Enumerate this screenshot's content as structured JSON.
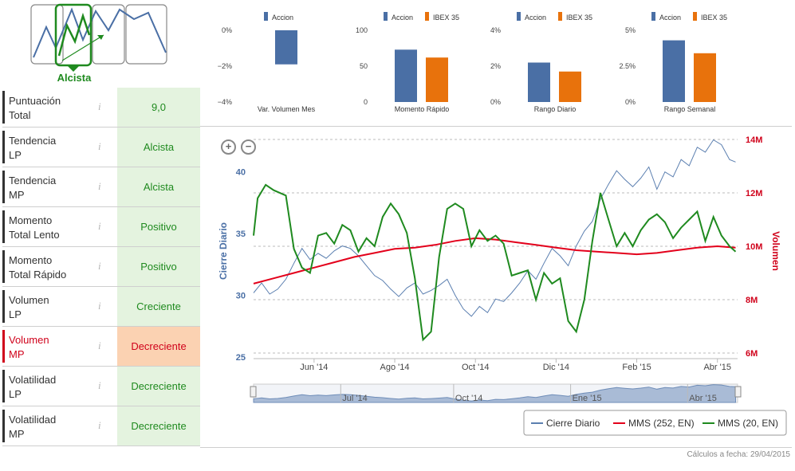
{
  "trend_label": "Alcista",
  "metrics": [
    {
      "name": "Puntuación\nTotal",
      "info": "i",
      "value": "9,0",
      "style": "bold"
    },
    {
      "name": "Tendencia\nLP",
      "info": "i",
      "value": "Alcista",
      "style": "normal"
    },
    {
      "name": "Tendencia\nMP",
      "info": "i",
      "value": "Alcista",
      "style": "normal"
    },
    {
      "name": "Momento\nTotal Lento",
      "info": "i",
      "value": "Positivo",
      "style": "normal"
    },
    {
      "name": "Momento\nTotal Rápido",
      "info": "i",
      "value": "Positivo",
      "style": "normal"
    },
    {
      "name": "Volumen\nLP",
      "info": "i",
      "value": "Creciente",
      "style": "normal"
    },
    {
      "name": "Volumen\nMP",
      "info": "i",
      "value": "Decreciente",
      "style": "alert"
    },
    {
      "name": "Volatilidad\nLP",
      "info": "i",
      "value": "Decreciente",
      "style": "normal"
    },
    {
      "name": "Volatilidad\nMP",
      "info": "i",
      "value": "Decreciente",
      "style": "normal"
    }
  ],
  "footer": "Cálculos a fecha: 29/04/2015",
  "colors": {
    "accion": "#4a6fa5",
    "ibex": "#e8720c",
    "green": "#1f8a1f",
    "red": "#e3001b",
    "blue_line": "#5b7fb0"
  },
  "chart_data": [
    {
      "type": "bar",
      "xlabel": "Var. Volumen Mes",
      "series": [
        {
          "name": "Accion",
          "values": [
            -1.9
          ]
        }
      ],
      "ylim": [
        -4,
        0
      ],
      "ticks": [
        "0%",
        "−2%",
        "−4%"
      ],
      "tick_values": [
        0,
        -2,
        -4
      ]
    },
    {
      "type": "bar",
      "xlabel": "Momento Rápido",
      "series": [
        {
          "name": "Accion",
          "values": [
            73
          ]
        },
        {
          "name": "IBEX 35",
          "values": [
            62
          ]
        }
      ],
      "ylim": [
        0,
        100
      ],
      "ticks": [
        "100",
        "50",
        "0"
      ],
      "tick_values": [
        100,
        50,
        0
      ]
    },
    {
      "type": "bar",
      "xlabel": "Rango Diario",
      "series": [
        {
          "name": "Accion",
          "values": [
            2.2
          ]
        },
        {
          "name": "IBEX 35",
          "values": [
            1.7
          ]
        }
      ],
      "ylim": [
        0,
        4
      ],
      "ticks": [
        "4%",
        "2%",
        "0%"
      ],
      "tick_values": [
        4,
        2,
        0
      ]
    },
    {
      "type": "bar",
      "xlabel": "Rango Semanal",
      "series": [
        {
          "name": "Accion",
          "values": [
            4.3
          ]
        },
        {
          "name": "IBEX 35",
          "values": [
            3.4
          ]
        }
      ],
      "ylim": [
        0,
        5
      ],
      "ticks": [
        "5%",
        "2.5%",
        "0%"
      ],
      "tick_values": [
        5,
        2.5,
        0
      ]
    },
    {
      "type": "line",
      "ylabel": "Cierre Diario",
      "y2label": "Volumen",
      "ylim": [
        25,
        42.5
      ],
      "y2lim": [
        6,
        14
      ],
      "yticks": [
        "25",
        "30",
        "35",
        "40"
      ],
      "ytick_values": [
        25,
        30,
        35,
        40
      ],
      "y2ticks": [
        "6M",
        "8M",
        "10M",
        "12M",
        "14M"
      ],
      "y2tick_values": [
        6,
        8,
        10,
        12,
        14
      ],
      "xticks": [
        "Jun '14",
        "Ago '14",
        "Oct '14",
        "Dic '14",
        "Feb '15",
        "Abr '15"
      ],
      "xtick_values": [
        1.5,
        3.5,
        5.5,
        7.5,
        9.5,
        11.5
      ],
      "xlim": [
        0,
        12.0
      ],
      "navigator_ticks": [
        "Jul '14",
        "Oct '14",
        "Ene '15",
        "Abr '15"
      ],
      "series": [
        {
          "name": "Cierre Diario",
          "axis": "left",
          "x": [
            0.0,
            0.2,
            0.4,
            0.6,
            0.8,
            1.0,
            1.2,
            1.4,
            1.6,
            1.8,
            2.0,
            2.2,
            2.4,
            2.6,
            2.8,
            3.0,
            3.2,
            3.4,
            3.6,
            3.8,
            4.0,
            4.2,
            4.4,
            4.6,
            4.8,
            5.0,
            5.2,
            5.4,
            5.6,
            5.8,
            6.0,
            6.2,
            6.4,
            6.6,
            6.8,
            7.0,
            7.2,
            7.4,
            7.6,
            7.8,
            8.0,
            8.2,
            8.4,
            8.6,
            8.8,
            9.0,
            9.2,
            9.4,
            9.6,
            9.8,
            10.0,
            10.2,
            10.4,
            10.6,
            10.8,
            11.0,
            11.2,
            11.4,
            11.6,
            11.8,
            11.95
          ],
          "y": [
            30.2,
            31.0,
            30.1,
            30.5,
            31.3,
            32.6,
            33.8,
            32.9,
            33.4,
            33.0,
            33.6,
            34.0,
            33.8,
            33.2,
            32.4,
            31.6,
            31.2,
            30.5,
            29.9,
            30.6,
            31.0,
            30.1,
            30.4,
            30.8,
            31.3,
            30.0,
            28.9,
            28.3,
            29.1,
            28.6,
            29.7,
            29.5,
            30.2,
            31.0,
            32.0,
            31.3,
            32.6,
            33.8,
            33.2,
            32.4,
            34.0,
            35.2,
            36.0,
            37.8,
            39.0,
            40.1,
            39.4,
            38.8,
            39.5,
            40.4,
            38.6,
            40.0,
            39.6,
            41.0,
            40.5,
            42.0,
            41.6,
            42.6,
            42.2,
            41.0,
            40.8
          ]
        },
        {
          "name": "MMS (252, EN)",
          "axis": "right",
          "x": [
            0.0,
            0.5,
            1.0,
            1.5,
            2.0,
            2.5,
            3.0,
            3.5,
            4.0,
            4.5,
            5.0,
            5.5,
            6.0,
            6.5,
            7.0,
            7.5,
            8.0,
            8.5,
            9.0,
            9.5,
            10.0,
            10.5,
            11.0,
            11.5,
            11.95
          ],
          "y": [
            8.6,
            8.8,
            9.0,
            9.2,
            9.4,
            9.6,
            9.75,
            9.9,
            9.95,
            10.05,
            10.2,
            10.3,
            10.25,
            10.15,
            10.05,
            9.95,
            9.85,
            9.8,
            9.75,
            9.7,
            9.75,
            9.85,
            9.95,
            10.0,
            9.95
          ]
        },
        {
          "name": "MMS (20, EN)",
          "axis": "right",
          "x": [
            0.0,
            0.1,
            0.3,
            0.5,
            0.8,
            1.0,
            1.2,
            1.4,
            1.6,
            1.8,
            2.0,
            2.2,
            2.4,
            2.6,
            2.8,
            3.0,
            3.2,
            3.4,
            3.6,
            3.8,
            4.0,
            4.2,
            4.4,
            4.6,
            4.8,
            5.0,
            5.2,
            5.4,
            5.6,
            5.8,
            6.0,
            6.2,
            6.4,
            6.6,
            6.8,
            7.0,
            7.2,
            7.4,
            7.6,
            7.8,
            8.0,
            8.2,
            8.4,
            8.6,
            8.8,
            9.0,
            9.2,
            9.4,
            9.6,
            9.8,
            10.0,
            10.2,
            10.4,
            10.6,
            10.8,
            11.0,
            11.2,
            11.4,
            11.6,
            11.8,
            11.95
          ],
          "y": [
            10.4,
            11.8,
            12.3,
            12.1,
            11.9,
            9.9,
            9.2,
            9.0,
            10.4,
            10.5,
            10.1,
            10.8,
            10.6,
            9.8,
            10.3,
            10.0,
            11.1,
            11.6,
            11.2,
            10.5,
            8.8,
            6.5,
            6.8,
            9.6,
            11.4,
            11.6,
            11.4,
            10.0,
            10.6,
            10.2,
            10.4,
            10.1,
            8.9,
            9.0,
            9.1,
            8.0,
            9.0,
            8.6,
            8.8,
            7.2,
            6.8,
            8.0,
            10.2,
            12.0,
            11.0,
            10.0,
            10.5,
            10.0,
            10.6,
            11.0,
            11.2,
            10.9,
            10.3,
            10.7,
            11.0,
            11.3,
            10.2,
            11.1,
            10.4,
            10.0,
            9.8
          ]
        }
      ]
    }
  ],
  "legends": {
    "mini_accion": "Accion",
    "mini_ibex": "IBEX 35"
  }
}
